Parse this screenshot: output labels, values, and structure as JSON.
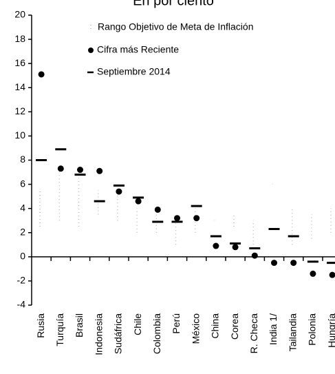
{
  "chart_data": {
    "type": "dot",
    "title": "En por ciento",
    "categories": [
      "Rusia",
      "Turquía",
      "Brasil",
      "Indonesia",
      "Sudáfrica",
      "Chile",
      "Colombia",
      "Perú",
      "México",
      "China",
      "Corea",
      "R. Checa",
      "India 1/",
      "Tailandia",
      "Polonia",
      "Hungría"
    ],
    "range": {
      "name": "Rango Objetivo de Meta de Inflación",
      "color": "#bbbbbb",
      "low": [
        2.5,
        3,
        2.5,
        3.5,
        3,
        2,
        2,
        1,
        2,
        3,
        2.5,
        1,
        6,
        1,
        1.5,
        2
      ],
      "high": [
        5.5,
        7,
        6.5,
        5.5,
        6,
        4,
        4,
        3,
        4,
        3,
        3.5,
        3,
        6,
        4,
        3.5,
        4
      ]
    },
    "series": [
      {
        "name": "Cifra más Reciente",
        "color": "#000000",
        "marker": "dot",
        "values": [
          15.1,
          7.3,
          7.2,
          7.1,
          5.4,
          4.6,
          3.9,
          3.2,
          3.2,
          0.9,
          0.8,
          0.1,
          -0.5,
          -0.5,
          -1.4,
          -1.5
        ]
      },
      {
        "name": "Septiembre 2014",
        "color": "#000000",
        "marker": "dash",
        "values": [
          8.0,
          8.9,
          6.8,
          4.6,
          5.9,
          4.9,
          2.9,
          2.9,
          4.2,
          1.7,
          1.1,
          0.7,
          2.3,
          1.7,
          -0.4,
          -0.5
        ]
      }
    ],
    "ylim": [
      -4,
      20
    ],
    "yticks": [
      -4,
      -2,
      0,
      2,
      4,
      6,
      8,
      10,
      12,
      14,
      16,
      18,
      20
    ]
  }
}
